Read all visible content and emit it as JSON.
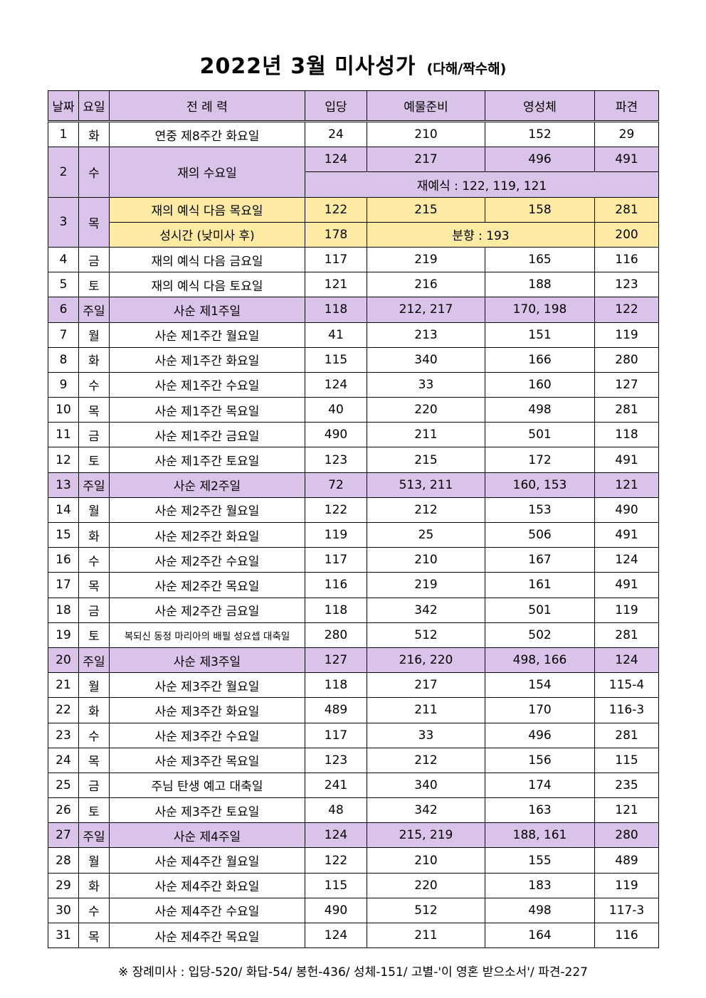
{
  "title": {
    "main": "2022년 3월 미사성가",
    "sub": "(다해/짝수해)"
  },
  "columns": [
    "날짜",
    "요일",
    "전 례 력",
    "입당",
    "예물준비",
    "영성체",
    "파견"
  ],
  "rows": [
    {
      "date": "1",
      "day": "화",
      "liturgy": "연중 제8주간 화요일",
      "entrance": "24",
      "offertory": "210",
      "communion": "152",
      "dismissal": "29"
    },
    {
      "date": "2",
      "day": "수",
      "liturgy": "재의 수요일",
      "entrance": "124",
      "offertory": "217",
      "communion": "496",
      "dismissal": "491",
      "extra": "재예식 : 122, 119, 121"
    },
    {
      "date": "3",
      "day": "목",
      "liturgy": "재의 예식 다음 목요일",
      "entrance": "122",
      "offertory": "215",
      "communion": "158",
      "dismissal": "281",
      "sub_liturgy": "성시간 (낮미사 후)",
      "sub_entrance": "178",
      "sub_incense": "분향 : 193",
      "sub_dismissal": "200"
    },
    {
      "date": "4",
      "day": "금",
      "liturgy": "재의 예식 다음 금요일",
      "entrance": "117",
      "offertory": "219",
      "communion": "165",
      "dismissal": "116"
    },
    {
      "date": "5",
      "day": "토",
      "liturgy": "재의 예식 다음 토요일",
      "entrance": "121",
      "offertory": "216",
      "communion": "188",
      "dismissal": "123"
    },
    {
      "date": "6",
      "day": "주일",
      "liturgy": "사순 제1주일",
      "entrance": "118",
      "offertory": "212, 217",
      "communion": "170, 198",
      "dismissal": "122"
    },
    {
      "date": "7",
      "day": "월",
      "liturgy": "사순 제1주간 월요일",
      "entrance": "41",
      "offertory": "213",
      "communion": "151",
      "dismissal": "119"
    },
    {
      "date": "8",
      "day": "화",
      "liturgy": "사순 제1주간 화요일",
      "entrance": "115",
      "offertory": "340",
      "communion": "166",
      "dismissal": "280"
    },
    {
      "date": "9",
      "day": "수",
      "liturgy": "사순 제1주간 수요일",
      "entrance": "124",
      "offertory": "33",
      "communion": "160",
      "dismissal": "127"
    },
    {
      "date": "10",
      "day": "목",
      "liturgy": "사순 제1주간 목요일",
      "entrance": "40",
      "offertory": "220",
      "communion": "498",
      "dismissal": "281"
    },
    {
      "date": "11",
      "day": "금",
      "liturgy": "사순 제1주간 금요일",
      "entrance": "490",
      "offertory": "211",
      "communion": "501",
      "dismissal": "118"
    },
    {
      "date": "12",
      "day": "토",
      "liturgy": "사순 제1주간 토요일",
      "entrance": "123",
      "offertory": "215",
      "communion": "172",
      "dismissal": "491"
    },
    {
      "date": "13",
      "day": "주일",
      "liturgy": "사순 제2주일",
      "entrance": "72",
      "offertory": "513, 211",
      "communion": "160, 153",
      "dismissal": "121"
    },
    {
      "date": "14",
      "day": "월",
      "liturgy": "사순 제2주간 월요일",
      "entrance": "122",
      "offertory": "212",
      "communion": "153",
      "dismissal": "490"
    },
    {
      "date": "15",
      "day": "화",
      "liturgy": "사순 제2주간 화요일",
      "entrance": "119",
      "offertory": "25",
      "communion": "506",
      "dismissal": "491"
    },
    {
      "date": "16",
      "day": "수",
      "liturgy": "사순 제2주간 수요일",
      "entrance": "117",
      "offertory": "210",
      "communion": "167",
      "dismissal": "124"
    },
    {
      "date": "17",
      "day": "목",
      "liturgy": "사순 제2주간 목요일",
      "entrance": "116",
      "offertory": "219",
      "communion": "161",
      "dismissal": "491"
    },
    {
      "date": "18",
      "day": "금",
      "liturgy": "사순 제2주간 금요일",
      "entrance": "118",
      "offertory": "342",
      "communion": "501",
      "dismissal": "119"
    },
    {
      "date": "19",
      "day": "토",
      "liturgy": "복되신 동정 마리아의 배필 성요셉 대축일",
      "entrance": "280",
      "offertory": "512",
      "communion": "502",
      "dismissal": "281"
    },
    {
      "date": "20",
      "day": "주일",
      "liturgy": "사순 제3주일",
      "entrance": "127",
      "offertory": "216, 220",
      "communion": "498, 166",
      "dismissal": "124"
    },
    {
      "date": "21",
      "day": "월",
      "liturgy": "사순 제3주간 월요일",
      "entrance": "118",
      "offertory": "217",
      "communion": "154",
      "dismissal": "115-4"
    },
    {
      "date": "22",
      "day": "화",
      "liturgy": "사순 제3주간 화요일",
      "entrance": "489",
      "offertory": "211",
      "communion": "170",
      "dismissal": "116-3"
    },
    {
      "date": "23",
      "day": "수",
      "liturgy": "사순 제3주간 수요일",
      "entrance": "117",
      "offertory": "33",
      "communion": "496",
      "dismissal": "281"
    },
    {
      "date": "24",
      "day": "목",
      "liturgy": "사순 제3주간 목요일",
      "entrance": "123",
      "offertory": "212",
      "communion": "156",
      "dismissal": "115"
    },
    {
      "date": "25",
      "day": "금",
      "liturgy": "주님 탄생 예고 대축일",
      "entrance": "241",
      "offertory": "340",
      "communion": "174",
      "dismissal": "235"
    },
    {
      "date": "26",
      "day": "토",
      "liturgy": "사순 제3주간 토요일",
      "entrance": "48",
      "offertory": "342",
      "communion": "163",
      "dismissal": "121"
    },
    {
      "date": "27",
      "day": "주일",
      "liturgy": "사순 제4주일",
      "entrance": "124",
      "offertory": "215, 219",
      "communion": "188, 161",
      "dismissal": "280"
    },
    {
      "date": "28",
      "day": "월",
      "liturgy": "사순 제4주간 월요일",
      "entrance": "122",
      "offertory": "210",
      "communion": "155",
      "dismissal": "489"
    },
    {
      "date": "29",
      "day": "화",
      "liturgy": "사순 제4주간 화요일",
      "entrance": "115",
      "offertory": "220",
      "communion": "183",
      "dismissal": "119"
    },
    {
      "date": "30",
      "day": "수",
      "liturgy": "사순 제4주간 수요일",
      "entrance": "490",
      "offertory": "512",
      "communion": "498",
      "dismissal": "117-3"
    },
    {
      "date": "31",
      "day": "목",
      "liturgy": "사순 제4주간 목요일",
      "entrance": "124",
      "offertory": "211",
      "communion": "164",
      "dismissal": "116"
    }
  ],
  "footnote": "※ 장례미사 : 입당-520/ 화답-54/ 봉헌-436/ 성체-151/ 고별-'이 영혼 받으소서'/ 파견-227",
  "colors": {
    "sunday_row": "#d9c3e8",
    "header": "#d9c3e8",
    "holy_thursday": "#fdeba4"
  }
}
